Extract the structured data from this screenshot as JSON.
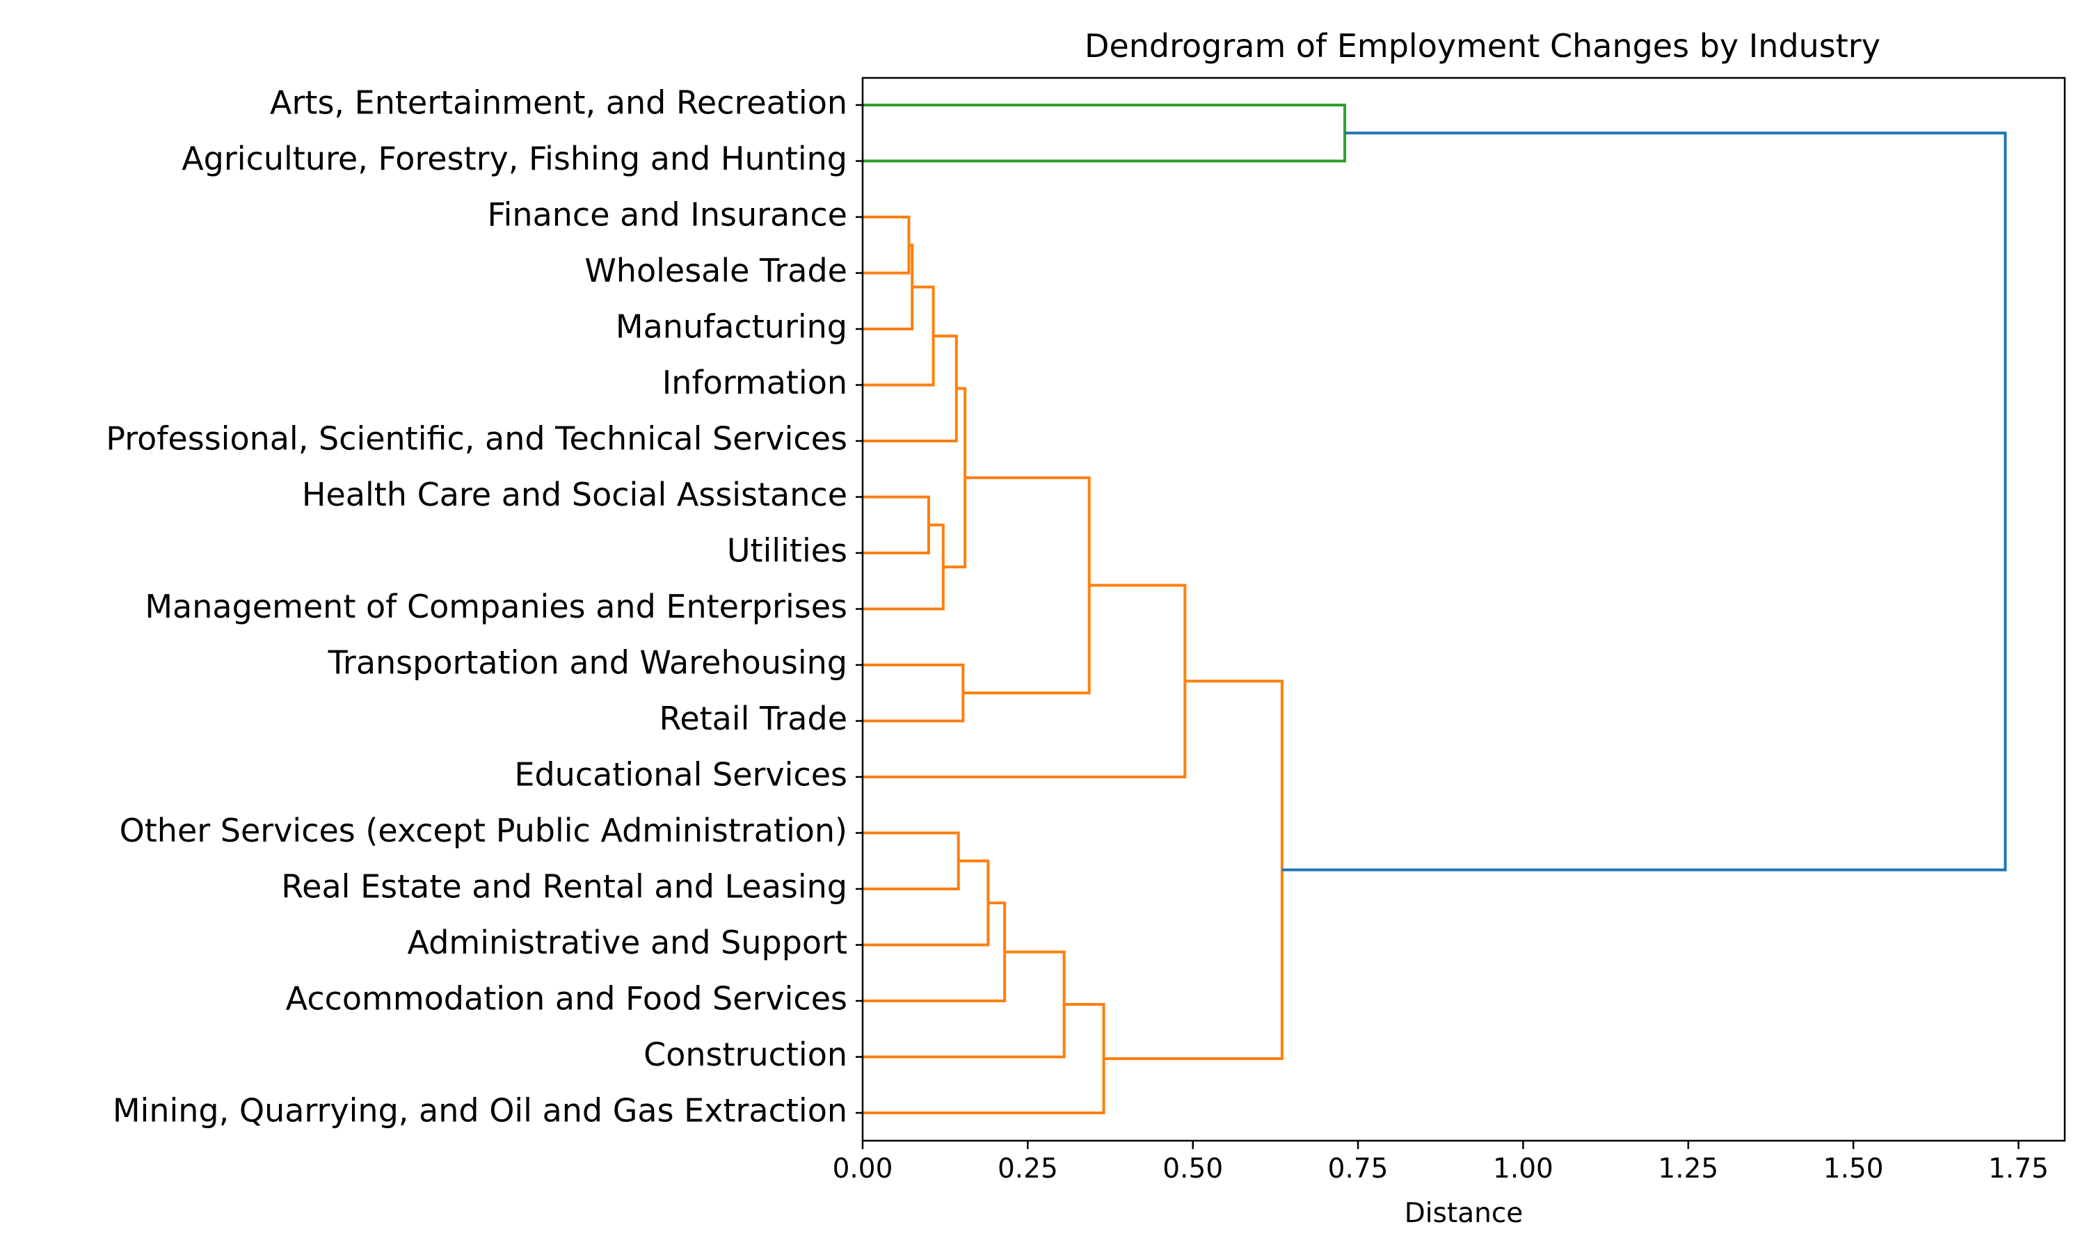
{
  "chart_data": {
    "type": "dendrogram",
    "orientation": "horizontal",
    "title": "Dendrogram of Employment Changes by Industry",
    "xlabel": "Distance",
    "xlim": [
      0,
      1.82
    ],
    "xticks": [
      0.0,
      0.25,
      0.5,
      0.75,
      1.0,
      1.25,
      1.5,
      1.75
    ],
    "xtick_labels": [
      "0.00",
      "0.25",
      "0.50",
      "0.75",
      "1.00",
      "1.25",
      "1.50",
      "1.75"
    ],
    "grid": false,
    "leaves": [
      "Arts, Entertainment, and Recreation",
      "Agriculture, Forestry, Fishing and Hunting",
      "Finance and Insurance",
      "Wholesale Trade",
      "Manufacturing",
      "Information",
      "Professional, Scientific, and Technical Services",
      "Health Care and Social Assistance",
      "Utilities",
      "Management of Companies and Enterprises",
      "Transportation and Warehousing",
      "Retail Trade",
      "Educational Services",
      "Other Services (except Public Administration)",
      "Real Estate and Rental and Leasing",
      "Administrative and Support",
      "Accommodation and Food Services",
      "Construction",
      "Mining, Quarrying, and Oil and Gas Extraction"
    ],
    "colors": {
      "cluster_a": "#2ca02c",
      "cluster_b": "#ff7f0e",
      "root": "#1f77b4",
      "axis": "#000000"
    },
    "merges": [
      {
        "id": "m1",
        "children": [
          "L0",
          "L1"
        ],
        "distance": 0.73,
        "color": "cluster_a"
      },
      {
        "id": "m2",
        "children": [
          "L2",
          "L3"
        ],
        "distance": 0.07,
        "color": "cluster_b"
      },
      {
        "id": "m3",
        "children": [
          "m2",
          "L4"
        ],
        "distance": 0.075,
        "color": "cluster_b"
      },
      {
        "id": "m4",
        "children": [
          "m3",
          "L5"
        ],
        "distance": 0.107,
        "color": "cluster_b"
      },
      {
        "id": "m5",
        "children": [
          "m4",
          "L6"
        ],
        "distance": 0.142,
        "color": "cluster_b"
      },
      {
        "id": "m6",
        "children": [
          "L7",
          "L8"
        ],
        "distance": 0.1,
        "color": "cluster_b"
      },
      {
        "id": "m7",
        "children": [
          "m6",
          "L9"
        ],
        "distance": 0.122,
        "color": "cluster_b"
      },
      {
        "id": "m8",
        "children": [
          "m5",
          "m7"
        ],
        "distance": 0.155,
        "color": "cluster_b"
      },
      {
        "id": "m9",
        "children": [
          "L10",
          "L11"
        ],
        "distance": 0.152,
        "color": "cluster_b"
      },
      {
        "id": "m10",
        "children": [
          "m8",
          "m9"
        ],
        "distance": 0.343,
        "color": "cluster_b"
      },
      {
        "id": "m11",
        "children": [
          "m10",
          "L12"
        ],
        "distance": 0.488,
        "color": "cluster_b"
      },
      {
        "id": "m12",
        "children": [
          "L13",
          "L14"
        ],
        "distance": 0.145,
        "color": "cluster_b"
      },
      {
        "id": "m13",
        "children": [
          "m12",
          "L15"
        ],
        "distance": 0.19,
        "color": "cluster_b"
      },
      {
        "id": "m14",
        "children": [
          "m13",
          "L16"
        ],
        "distance": 0.215,
        "color": "cluster_b"
      },
      {
        "id": "m15",
        "children": [
          "m14",
          "L17"
        ],
        "distance": 0.305,
        "color": "cluster_b"
      },
      {
        "id": "m16",
        "children": [
          "m15",
          "L18"
        ],
        "distance": 0.365,
        "color": "cluster_b"
      },
      {
        "id": "m17",
        "children": [
          "m11",
          "m16"
        ],
        "distance": 0.635,
        "color": "cluster_b"
      },
      {
        "id": "m18",
        "children": [
          "m1",
          "m17"
        ],
        "distance": 1.73,
        "color": "root"
      }
    ]
  }
}
